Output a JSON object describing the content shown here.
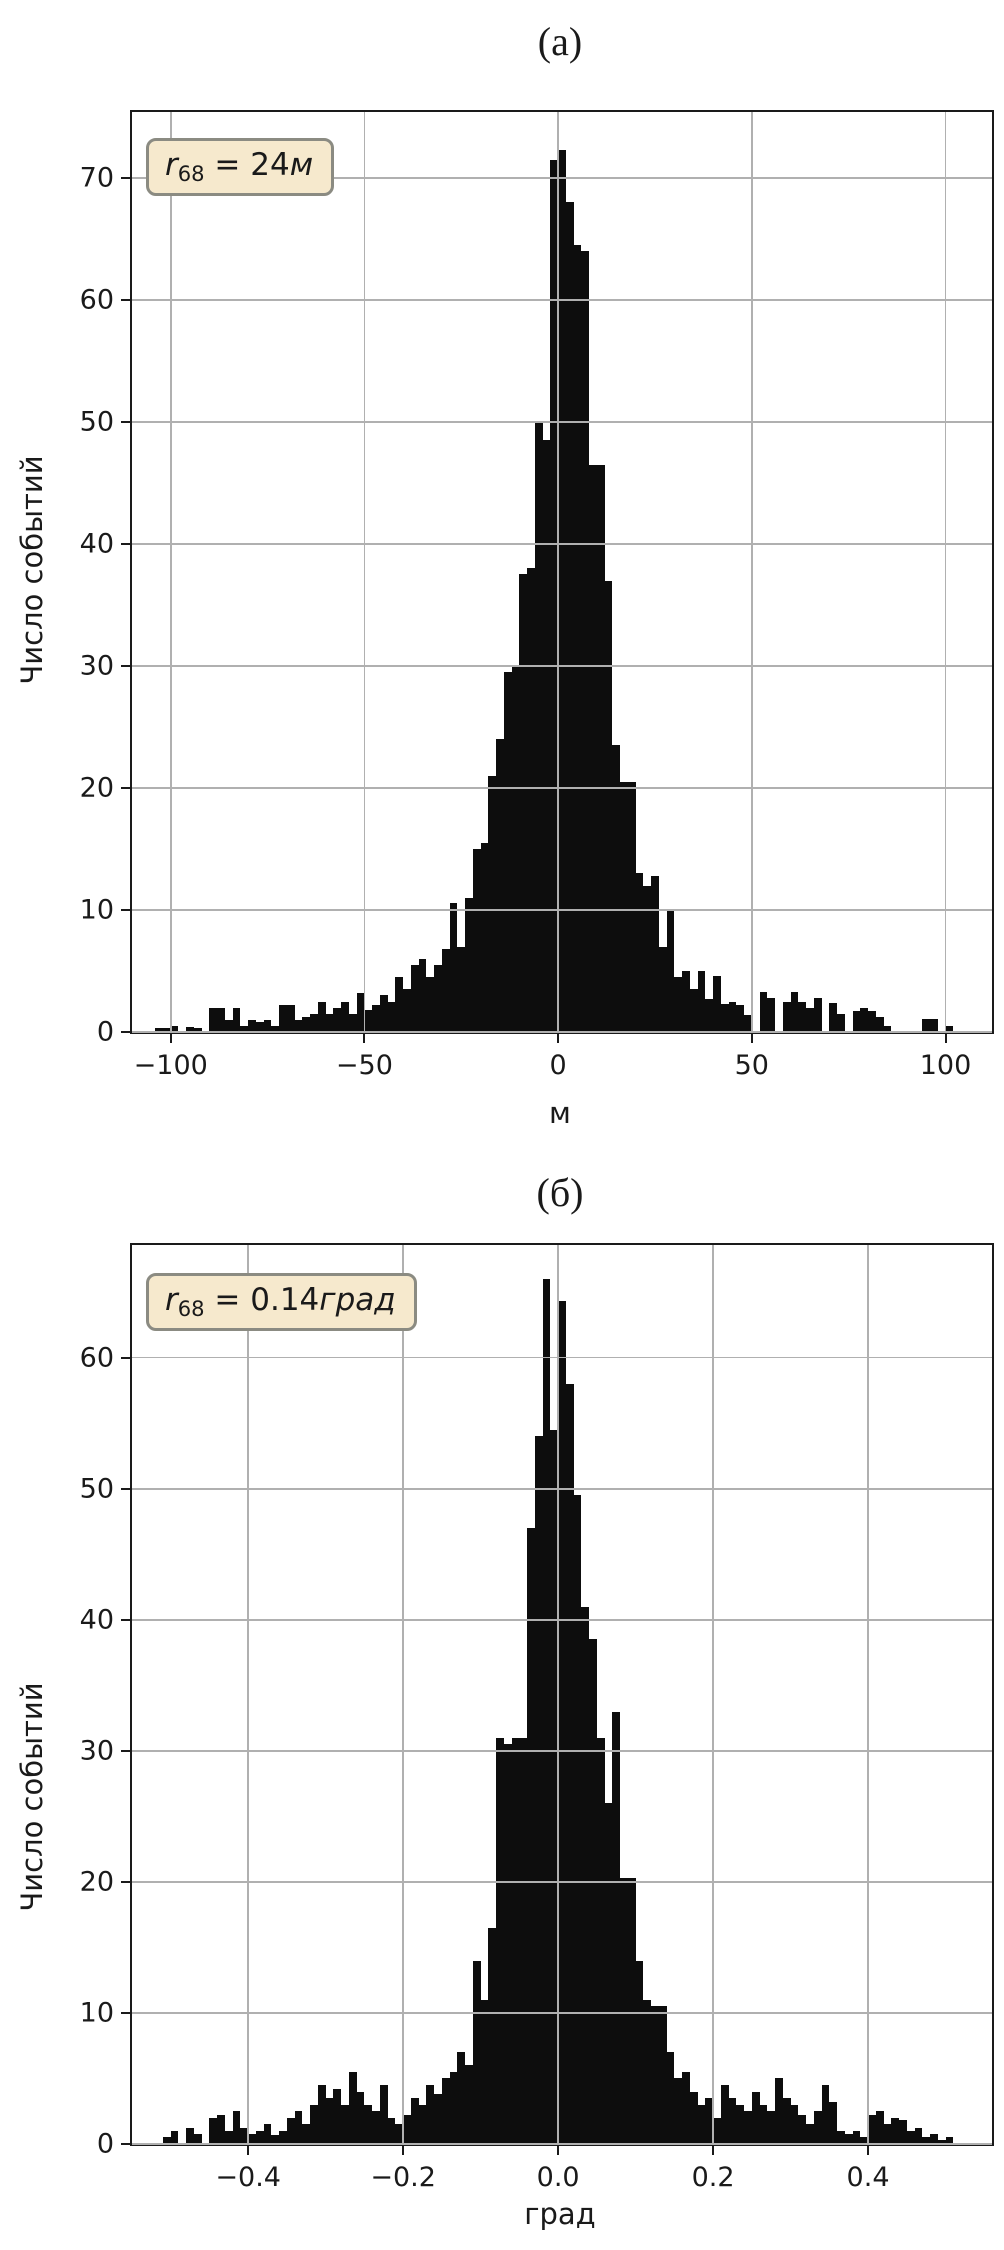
{
  "page": {
    "background": "#ffffff",
    "bar_color": "#0d0d0d",
    "grid_color": "#b0b0b0",
    "axis_color": "#1a1a1a",
    "legend_bg": "#f6e9cd",
    "legend_border": "#8b8b82"
  },
  "chart_data": [
    {
      "type": "bar",
      "subtype": "histogram",
      "title": "(а)",
      "xlabel": "м",
      "ylabel": "Число событий",
      "legend": {
        "var": "r",
        "sub": "68",
        "eq": " = 24",
        "unit": "м"
      },
      "grid": true,
      "legend_position": "upper-left",
      "xlim": [
        -110,
        112
      ],
      "ylim": [
        0,
        75.4
      ],
      "bin_start": -106,
      "bin_width": 2,
      "xticks": [
        {
          "v": -100,
          "label": "−100"
        },
        {
          "v": -50,
          "label": "−50"
        },
        {
          "v": 0,
          "label": "0"
        },
        {
          "v": 50,
          "label": "50"
        },
        {
          "v": 100,
          "label": "100"
        }
      ],
      "yticks": [
        {
          "v": 0,
          "label": "0"
        },
        {
          "v": 10,
          "label": "10"
        },
        {
          "v": 20,
          "label": "20"
        },
        {
          "v": 30,
          "label": "30"
        },
        {
          "v": 40,
          "label": "40"
        },
        {
          "v": 50,
          "label": "50"
        },
        {
          "v": 60,
          "label": "60"
        },
        {
          "v": 70,
          "label": "70"
        }
      ],
      "values": [
        0,
        0.3,
        0.3,
        0.5,
        0,
        0.4,
        0.3,
        0,
        2,
        2,
        1,
        2,
        0.5,
        1,
        0.8,
        1,
        0.5,
        2.2,
        2.2,
        1,
        1.2,
        1.5,
        2.5,
        1.5,
        2,
        2.5,
        1.5,
        3.2,
        1.8,
        2.2,
        3,
        2.5,
        4.5,
        3.5,
        5.5,
        6,
        4.5,
        5.5,
        6.8,
        10.6,
        7,
        11,
        15,
        15.5,
        21,
        24,
        29.5,
        30,
        37.5,
        38,
        50,
        48.5,
        71.5,
        72.3,
        68,
        64.5,
        64,
        46.5,
        46.5,
        37,
        23.5,
        20.5,
        20.5,
        13,
        12,
        12.8,
        7,
        10,
        4.5,
        5,
        3.5,
        5,
        2.7,
        4.6,
        2.3,
        2.5,
        2.2,
        1.4,
        0,
        3.3,
        2.8,
        0,
        2.5,
        3.3,
        2.5,
        2,
        2.8,
        0,
        2.4,
        1.5,
        0,
        1.7,
        2,
        1.7,
        1.2,
        0.5,
        0,
        0,
        0,
        0,
        1.1,
        1.1,
        0,
        0.5,
        0,
        0
      ]
    },
    {
      "type": "bar",
      "subtype": "histogram",
      "title": "(б)",
      "xlabel": "град",
      "ylabel": "Число событий",
      "legend": {
        "var": "r",
        "sub": "68",
        "eq": " = 0.14",
        "unit": "град"
      },
      "grid": true,
      "legend_position": "upper-left",
      "xlim": [
        -0.55,
        0.56
      ],
      "ylim": [
        0,
        68.6
      ],
      "bin_start": -0.52,
      "bin_width": 0.01,
      "xticks": [
        {
          "v": -0.4,
          "label": "−0.4"
        },
        {
          "v": -0.2,
          "label": "−0.2"
        },
        {
          "v": 0,
          "label": "0.0"
        },
        {
          "v": 0.2,
          "label": "0.2"
        },
        {
          "v": 0.4,
          "label": "0.4"
        }
      ],
      "yticks": [
        {
          "v": 0,
          "label": "0"
        },
        {
          "v": 10,
          "label": "10"
        },
        {
          "v": 20,
          "label": "20"
        },
        {
          "v": 30,
          "label": "30"
        },
        {
          "v": 40,
          "label": "40"
        },
        {
          "v": 50,
          "label": "50"
        },
        {
          "v": 60,
          "label": "60"
        }
      ],
      "values": [
        0,
        0.5,
        1,
        0,
        1.2,
        0.8,
        0,
        2,
        2.2,
        1,
        2.5,
        1.2,
        0.8,
        1,
        1.5,
        0.7,
        1,
        2,
        2.5,
        1.5,
        3,
        4.5,
        3.5,
        4.2,
        3,
        5.5,
        4,
        3,
        2.5,
        4.5,
        2,
        1.5,
        2.2,
        3.5,
        3,
        4.5,
        3.8,
        5,
        5.5,
        7,
        6,
        14,
        11,
        16.5,
        31,
        30.5,
        31,
        31,
        47,
        54,
        66,
        54.5,
        64.3,
        58,
        49.5,
        41,
        38.5,
        31,
        26,
        33,
        20.3,
        20.3,
        14,
        11,
        10.5,
        10.5,
        7,
        5,
        5.5,
        4,
        3,
        3.5,
        2,
        4.5,
        3.5,
        3,
        2.5,
        4,
        3,
        2.5,
        5,
        3.5,
        3,
        2.2,
        1.5,
        2.5,
        4.5,
        3.2,
        1,
        0.8,
        1,
        0.5,
        2.2,
        2.5,
        1.5,
        2,
        1.8,
        1,
        1.2,
        0.5,
        0.8,
        0.3,
        0.5,
        0
      ]
    }
  ]
}
